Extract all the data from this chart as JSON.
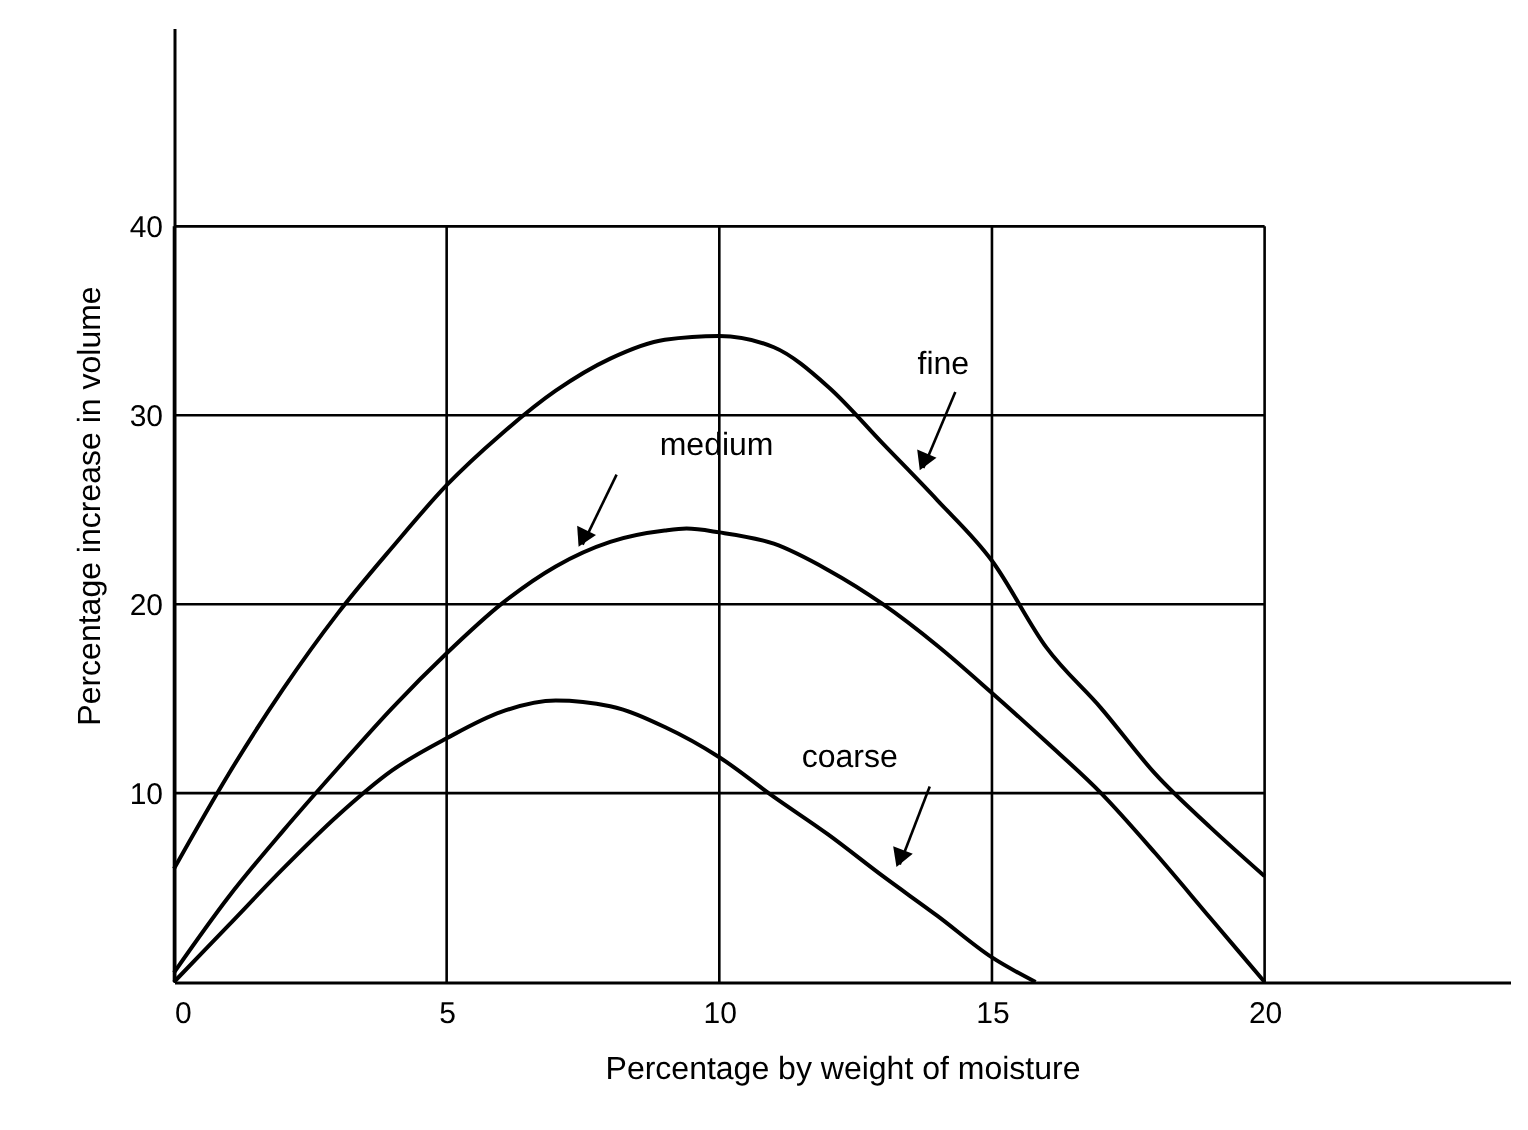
{
  "chart_data": {
    "type": "line",
    "xlabel": "Percentage by weight of moisture",
    "ylabel": "Percentage increase in volume",
    "xlim": [
      0,
      24.5
    ],
    "ylim": [
      0,
      50.5
    ],
    "xticks": [
      0,
      5,
      10,
      15,
      20
    ],
    "yticks": [
      10,
      20,
      30,
      40
    ],
    "grid": true,
    "marker": "none",
    "line_style": "solid",
    "series": [
      {
        "name": "fine",
        "color": "#000000",
        "x": [
          0,
          1,
          2,
          3,
          4,
          5,
          6,
          7,
          8,
          9,
          10,
          11,
          12,
          13,
          14,
          15,
          16,
          17,
          18,
          19,
          20
        ],
        "values": [
          6,
          11,
          15.5,
          19.5,
          23,
          26.3,
          29,
          31.3,
          33,
          34,
          34.2,
          33.6,
          31.5,
          28.5,
          25.5,
          22.3,
          17.7,
          14.5,
          11,
          8.2,
          5.6
        ]
      },
      {
        "name": "medium",
        "color": "#000000",
        "x": [
          0,
          1,
          2,
          3,
          4,
          5,
          6,
          7,
          8,
          9,
          9.4,
          10,
          11,
          12,
          13,
          14,
          15,
          16,
          17,
          18,
          19,
          20
        ],
        "values": [
          0.5,
          4.5,
          8,
          11.3,
          14.5,
          17.4,
          20,
          22,
          23.3,
          23.9,
          24,
          23.8,
          23.2,
          21.8,
          20,
          17.8,
          15.3,
          12.7,
          10,
          6.8,
          3.4,
          0
        ]
      },
      {
        "name": "coarse",
        "color": "#000000",
        "x": [
          0,
          1,
          2,
          3,
          4,
          5,
          6,
          7,
          8,
          9,
          10,
          11,
          12,
          13,
          14,
          15,
          15.8
        ],
        "values": [
          0,
          3,
          6,
          8.8,
          11.2,
          12.9,
          14.3,
          14.9,
          14.6,
          13.5,
          11.9,
          9.8,
          7.8,
          5.6,
          3.5,
          1.3,
          0
        ]
      }
    ]
  }
}
